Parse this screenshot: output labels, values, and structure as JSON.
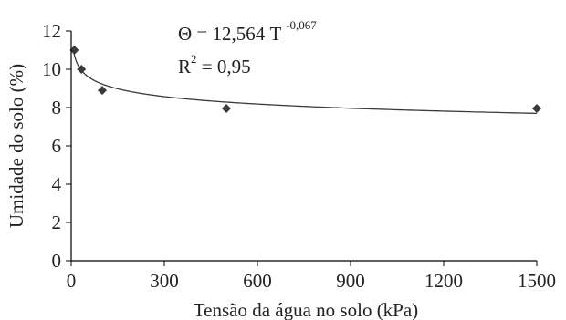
{
  "chart_data": {
    "type": "scatter",
    "xlabel": "Tensão da água no solo (kPa)",
    "ylabel": "Umidade do solo (%)",
    "xlim": [
      0,
      1500
    ],
    "ylim": [
      0,
      12
    ],
    "x_ticks": [
      "0",
      "300",
      "600",
      "900",
      "1200",
      "1500"
    ],
    "y_ticks": [
      "0",
      "2",
      "4",
      "6",
      "8",
      "10",
      "12"
    ],
    "grid": false,
    "legend": "none",
    "points": [
      {
        "x": 10,
        "y": 11.0
      },
      {
        "x": 33,
        "y": 10.0
      },
      {
        "x": 100,
        "y": 8.9
      },
      {
        "x": 500,
        "y": 7.95
      },
      {
        "x": 1500,
        "y": 7.95
      }
    ],
    "trendline": {
      "type": "power",
      "a": 12.564,
      "b": -0.067
    },
    "equation": {
      "theta_symbol": "Θ",
      "lhs_rest": " = 12,564 T ",
      "exponent": "-0,067",
      "r2_base": "R",
      "r2_sup": "2",
      "r2_rest": " = 0,95"
    },
    "colors": {
      "marker": "#3a3a3a",
      "line": "#3a3a3a",
      "axis": "#000000"
    }
  }
}
